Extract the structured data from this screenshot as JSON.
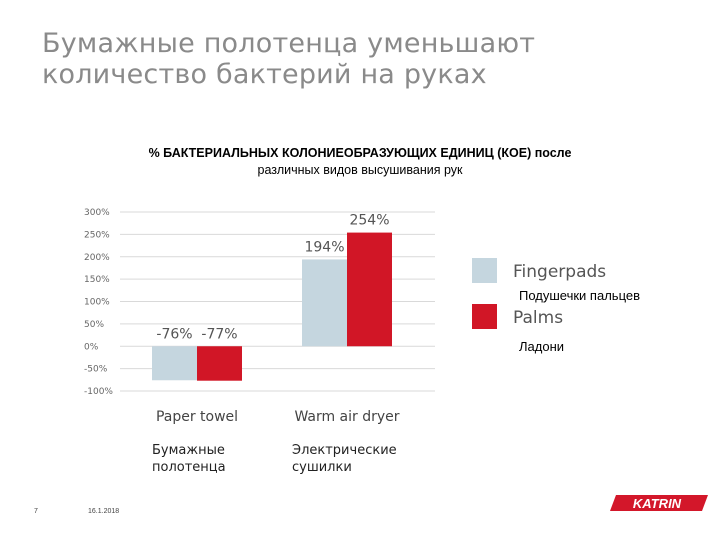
{
  "slide": {
    "title_line1": "Бумажные полотенца уменьшают",
    "title_line2": "количество бактерий на руках",
    "page_number": "7",
    "date": "16.1.2018",
    "logo_text": "KATRIN"
  },
  "colors": {
    "fingerpads": "#c5d6df",
    "palms": "#d11626",
    "grid": "#d9d9d9",
    "logo_red": "#d3172a"
  },
  "chart_data": {
    "type": "bar",
    "title_line1": "% БАКТЕРИАЛЬНЫХ КОЛОНИЕОБРАЗУЮЩИХ ЕДИНИЦ (КОЕ) после",
    "title_line2": "различных видов высушивания рук",
    "categories": [
      "Paper towel",
      "Warm air dryer"
    ],
    "categories_ru": [
      {
        "line1": "Бумажные",
        "line2": "полотенца"
      },
      {
        "line1": "Электрические",
        "line2": "сушилки"
      }
    ],
    "series": [
      {
        "name": "Fingerpads",
        "name_ru": "Подушечки пальцев",
        "values": [
          -76,
          194
        ],
        "labels": [
          "-76%",
          "194%"
        ]
      },
      {
        "name": "Palms",
        "name_ru": "Ладони",
        "values": [
          -77,
          254
        ],
        "labels": [
          "-77%",
          "254%"
        ]
      }
    ],
    "ylim": [
      -100,
      300
    ],
    "yticks": [
      300,
      250,
      200,
      150,
      100,
      50,
      0,
      -50,
      -100
    ],
    "ytick_labels": [
      "300%",
      "250%",
      "200%",
      "150%",
      "100%",
      "50%",
      "0%",
      "-50%",
      "-100%"
    ],
    "grid": true,
    "legend_position": "right"
  }
}
